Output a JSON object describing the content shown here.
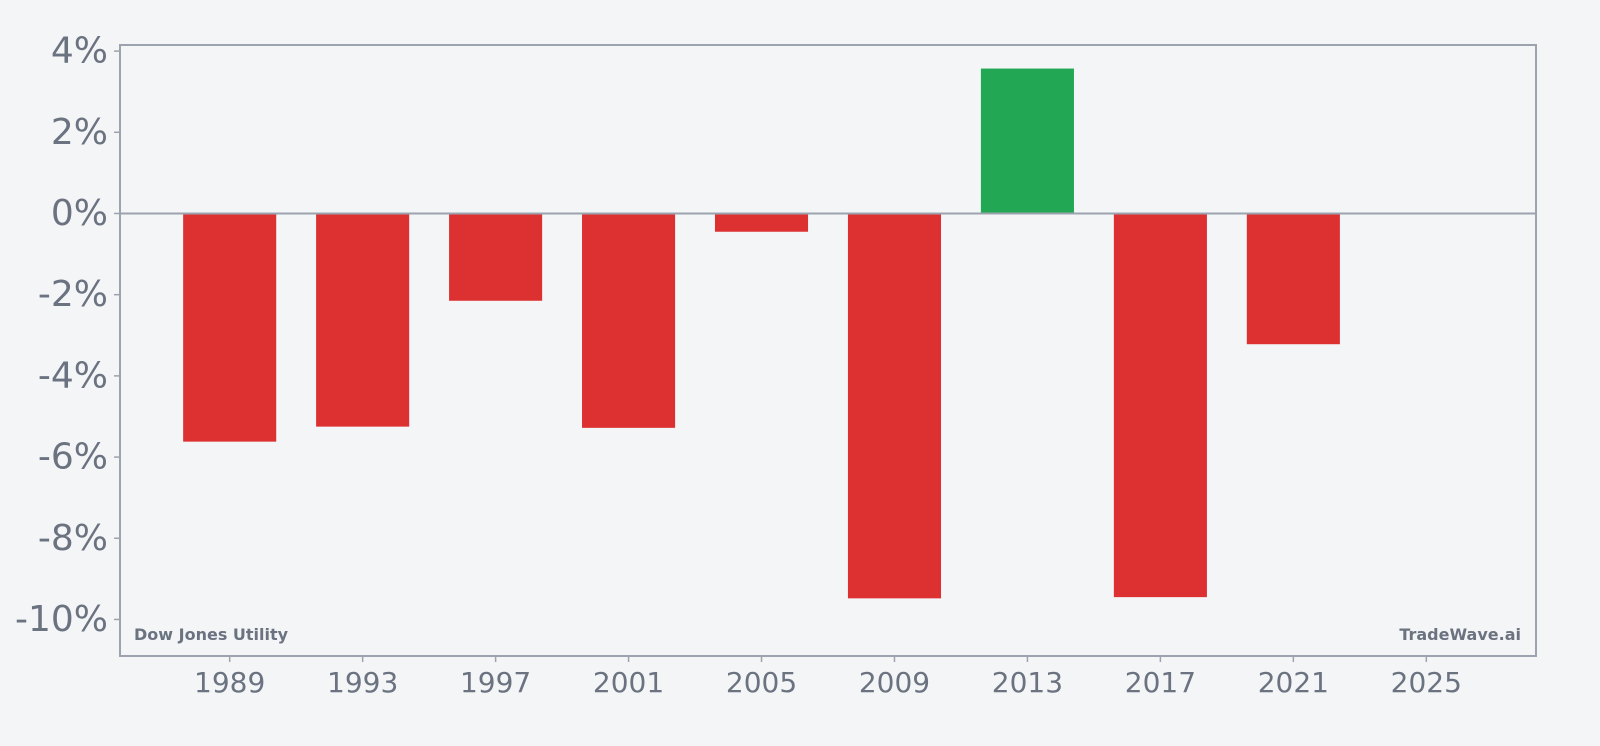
{
  "chart_data": {
    "type": "bar",
    "x": [
      1989,
      1993,
      1997,
      2001,
      2005,
      2009,
      2013,
      2017,
      2021
    ],
    "values": [
      -5.62,
      -5.25,
      -2.15,
      -5.28,
      -0.45,
      -9.48,
      3.57,
      -9.45,
      -3.22
    ],
    "xlim": [
      1985.7,
      2028.3
    ],
    "ylim": [
      -10.9,
      4.15
    ],
    "x_ticks": [
      1989,
      1993,
      1997,
      2001,
      2005,
      2009,
      2013,
      2017,
      2021,
      2025
    ],
    "y_ticks": [
      4,
      2,
      0,
      -2,
      -4,
      -6,
      -8,
      -10
    ],
    "y_tick_labels": [
      "4%",
      "2%",
      "0%",
      "-2%",
      "-4%",
      "-6%",
      "-8%",
      "-10%"
    ],
    "x_tick_labels": [
      "1989",
      "1993",
      "1997",
      "2001",
      "2005",
      "2009",
      "2013",
      "2017",
      "2021",
      "2025"
    ],
    "colors": {
      "negative": "#dc3031",
      "positive": "#22a855",
      "axis": "#9ca3af",
      "text": "#6b7280"
    },
    "annotations": {
      "left": "Dow Jones Utility",
      "right": "TradeWave.ai"
    }
  }
}
